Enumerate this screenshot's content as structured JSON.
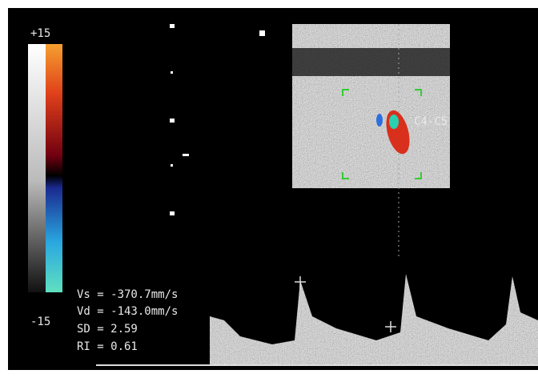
{
  "scale": {
    "top": "+15",
    "bottom": "-15"
  },
  "level_label": "C4-C5",
  "measurements": [
    "Vs = -370.7mm/s",
    "Vd = -143.0mm/s",
    "SD = 2.59",
    "RI = 0.61"
  ]
}
